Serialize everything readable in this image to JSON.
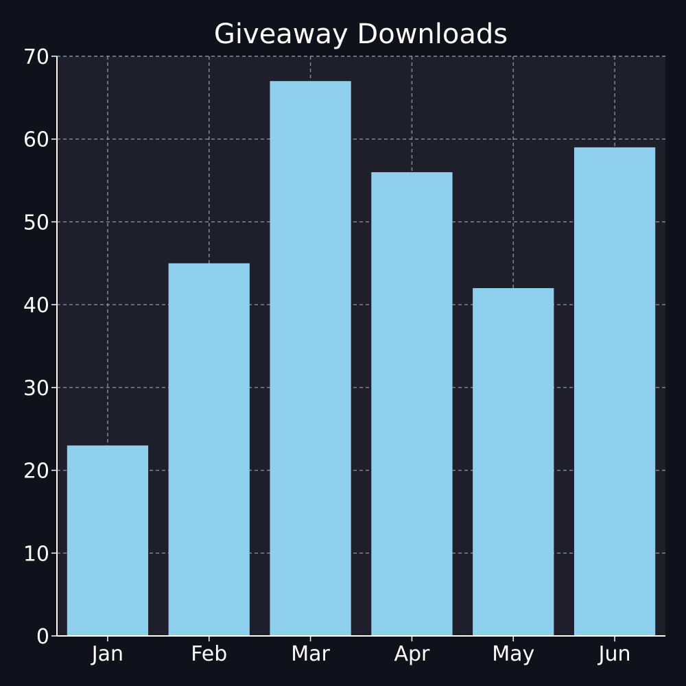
{
  "colors": {
    "page_background": "#0f121a",
    "plot_background": "#1e1f2b",
    "bar": "#8ecfee",
    "text": "#ffffff",
    "grid": "#8b8f99"
  },
  "chart_data": {
    "type": "bar",
    "title": "Giveaway Downloads",
    "xlabel": "",
    "ylabel": "",
    "categories": [
      "Jan",
      "Feb",
      "Mar",
      "Apr",
      "May",
      "Jun"
    ],
    "values": [
      23,
      45,
      67,
      56,
      42,
      59
    ],
    "ylim": [
      0,
      70
    ],
    "yticks": [
      0,
      10,
      20,
      30,
      40,
      50,
      60,
      70
    ],
    "grid": true,
    "legend": "none"
  }
}
